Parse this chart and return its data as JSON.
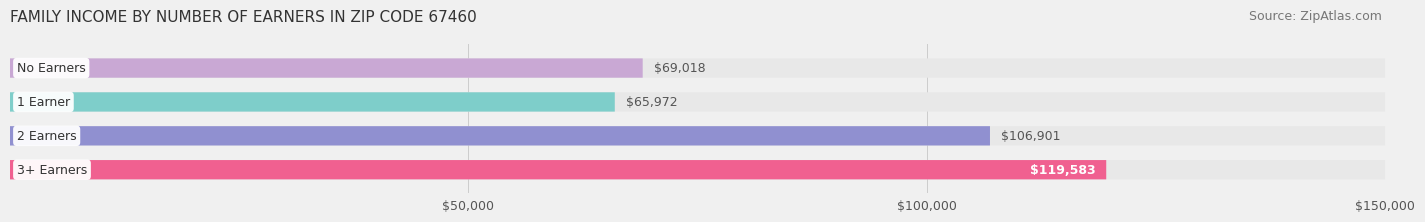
{
  "title": "FAMILY INCOME BY NUMBER OF EARNERS IN ZIP CODE 67460",
  "source": "Source: ZipAtlas.com",
  "categories": [
    "No Earners",
    "1 Earner",
    "2 Earners",
    "3+ Earners"
  ],
  "values": [
    69018,
    65972,
    106901,
    119583
  ],
  "bar_colors": [
    "#c9a8d4",
    "#7ececa",
    "#9090d0",
    "#f06090"
  ],
  "bar_labels": [
    "$69,018",
    "$65,972",
    "$106,901",
    "$119,583"
  ],
  "label_inside": [
    false,
    false,
    false,
    true
  ],
  "xlim": [
    0,
    150000
  ],
  "xticks": [
    50000,
    100000,
    150000
  ],
  "xtick_labels": [
    "$50,000",
    "$100,000",
    "$150,000"
  ],
  "background_color": "#f0f0f0",
  "bar_bg_color": "#e8e8e8",
  "title_fontsize": 11,
  "source_fontsize": 9,
  "label_fontsize": 9,
  "tick_fontsize": 9
}
